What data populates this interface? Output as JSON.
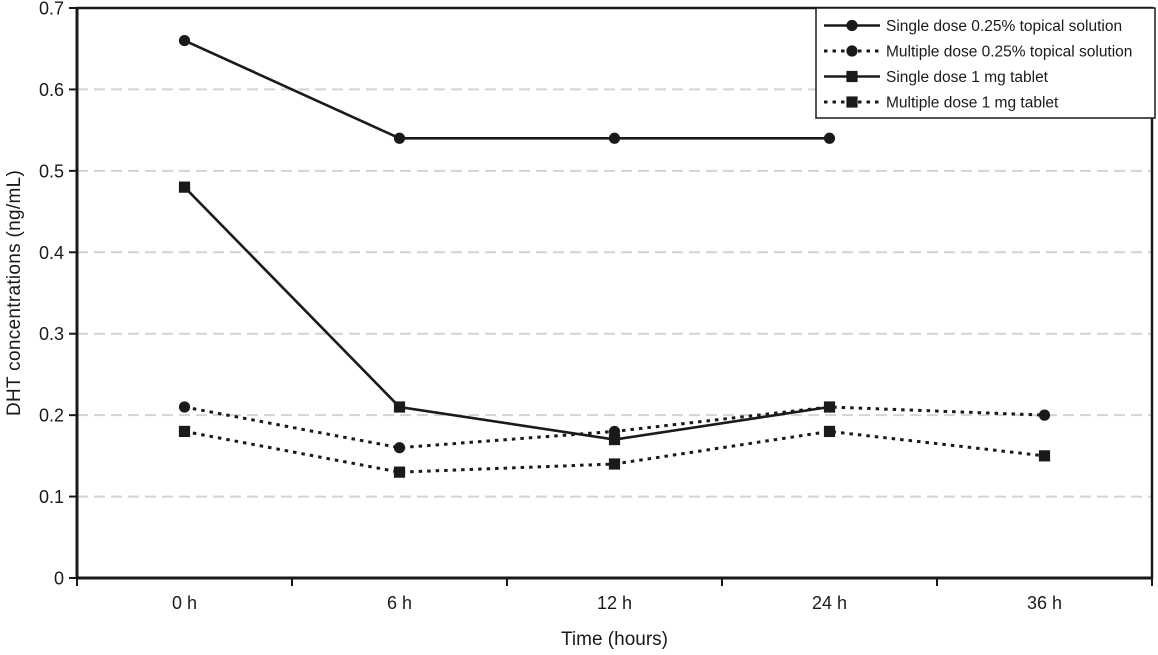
{
  "chart_data": {
    "type": "line",
    "title": "",
    "xlabel": "Time (hours)",
    "ylabel": "DHT concentrations (ng/mL)",
    "categories": [
      "0 h",
      "6 h",
      "12 h",
      "24 h",
      "36 h"
    ],
    "ylim": [
      0,
      0.7
    ],
    "ytick_step": 0.1,
    "ytick_labels": [
      "0",
      "0.1",
      "0.2",
      "0.3",
      "0.4",
      "0.5",
      "0.6",
      "0.7"
    ],
    "grid": "horizontal-dashed",
    "legend_position": "top-right",
    "series": [
      {
        "name": "Single dose 0.25% topical solution",
        "marker": "circle",
        "line": "solid",
        "values": [
          0.66,
          0.54,
          0.54,
          0.54,
          null
        ]
      },
      {
        "name": "Multiple dose 0.25% topical solution",
        "marker": "circle",
        "line": "dotted",
        "values": [
          0.21,
          0.16,
          0.18,
          0.21,
          0.2
        ]
      },
      {
        "name": "Single dose 1 mg tablet",
        "marker": "square",
        "line": "solid",
        "values": [
          0.48,
          0.21,
          0.17,
          0.21,
          null
        ]
      },
      {
        "name": "Multiple dose 1 mg tablet",
        "marker": "square",
        "line": "dotted",
        "values": [
          0.18,
          0.13,
          0.14,
          0.18,
          0.15
        ]
      }
    ],
    "colors": {
      "line": "#1a1a1a",
      "grid": "#d4d4d4",
      "background": "#ffffff"
    }
  }
}
